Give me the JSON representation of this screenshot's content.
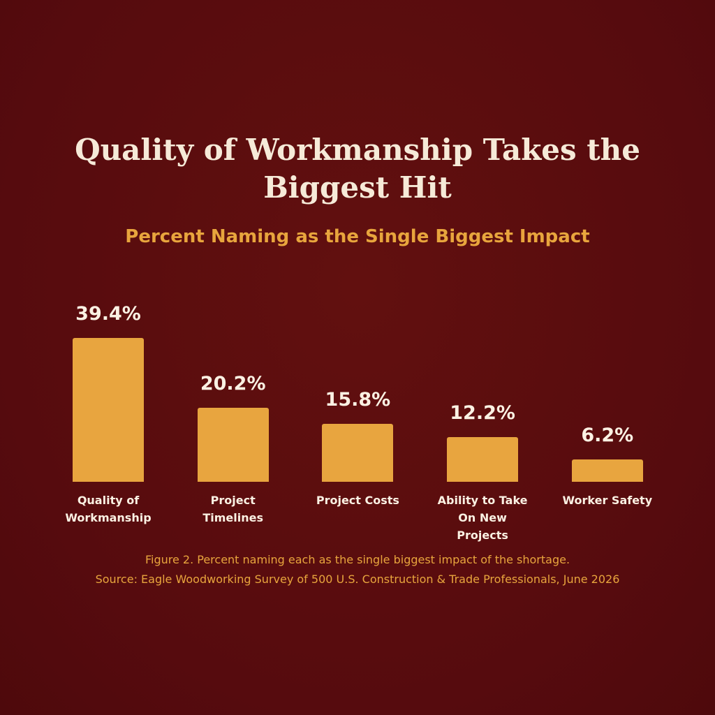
{
  "chart_data": {
    "type": "bar",
    "title": "Quality of Workmanship Takes the Biggest Hit",
    "subtitle": "Percent Naming as the Single Biggest Impact",
    "categories": [
      "Quality of Workmanship",
      "Project Timelines",
      "Project Costs",
      "Ability to Take On New Projects",
      "Worker Safety"
    ],
    "values": [
      39.4,
      20.2,
      15.8,
      12.2,
      6.2
    ],
    "value_labels": [
      "39.4%",
      "20.2%",
      "15.8%",
      "12.2%",
      "6.2%"
    ],
    "color": "#e8a53f",
    "caption": "Figure 2. Percent naming each as the single biggest impact of the shortage.",
    "source": "Source: Eagle Woodworking Survey of 500 U.S. Construction & Trade Professionals, June 2026"
  }
}
